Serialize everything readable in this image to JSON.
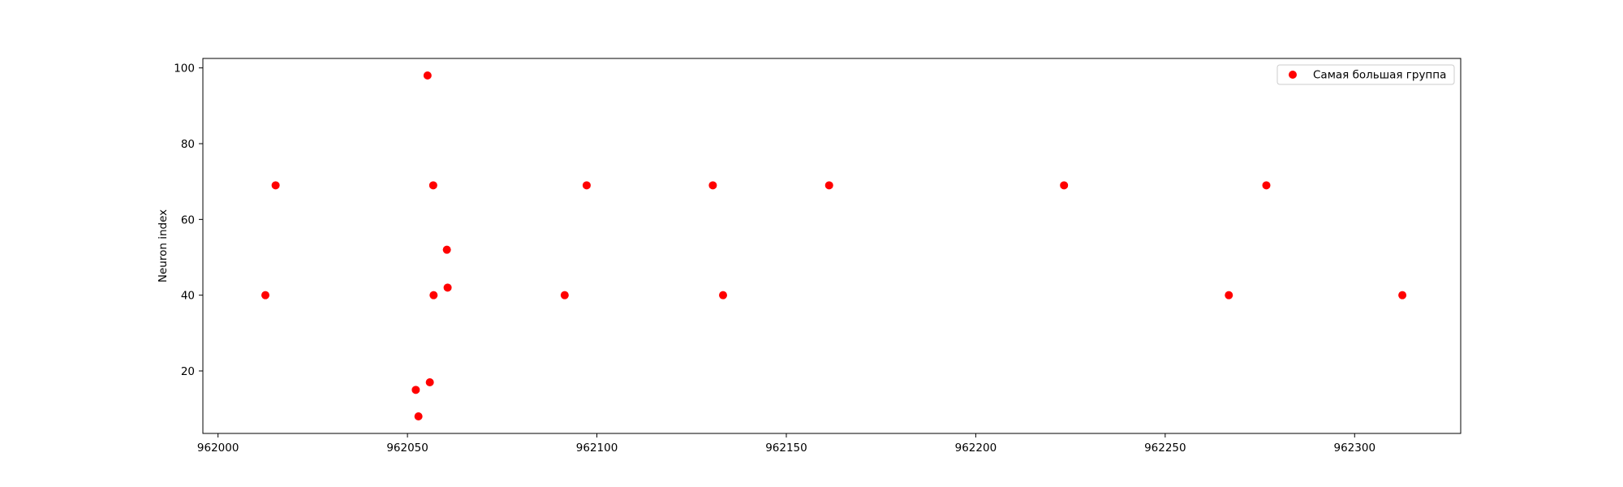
{
  "chart_data": {
    "type": "scatter",
    "title": "",
    "xlabel": "",
    "ylabel": "Neuron index",
    "xlim": [
      961996,
      962328
    ],
    "ylim": [
      3.5,
      102.5
    ],
    "xticks": [
      962000,
      962050,
      962100,
      962150,
      962200,
      962250,
      962300
    ],
    "yticks": [
      20,
      40,
      60,
      80,
      100
    ],
    "grid": false,
    "legend_position": "top-right",
    "series": [
      {
        "name": "Самая большая группа",
        "color": "#ff0000",
        "points": [
          {
            "x": 962012.5,
            "y": 40
          },
          {
            "x": 962015.2,
            "y": 69
          },
          {
            "x": 962052.2,
            "y": 15
          },
          {
            "x": 962052.9,
            "y": 8
          },
          {
            "x": 962055.3,
            "y": 98
          },
          {
            "x": 962055.9,
            "y": 17
          },
          {
            "x": 962056.8,
            "y": 69
          },
          {
            "x": 962056.9,
            "y": 40
          },
          {
            "x": 962060.4,
            "y": 52
          },
          {
            "x": 962060.6,
            "y": 42
          },
          {
            "x": 962091.5,
            "y": 40
          },
          {
            "x": 962097.3,
            "y": 69
          },
          {
            "x": 962130.6,
            "y": 69
          },
          {
            "x": 962133.3,
            "y": 40
          },
          {
            "x": 962161.3,
            "y": 69
          },
          {
            "x": 962223.3,
            "y": 69
          },
          {
            "x": 962266.8,
            "y": 40
          },
          {
            "x": 962276.7,
            "y": 69
          },
          {
            "x": 962312.6,
            "y": 40
          }
        ]
      }
    ]
  }
}
